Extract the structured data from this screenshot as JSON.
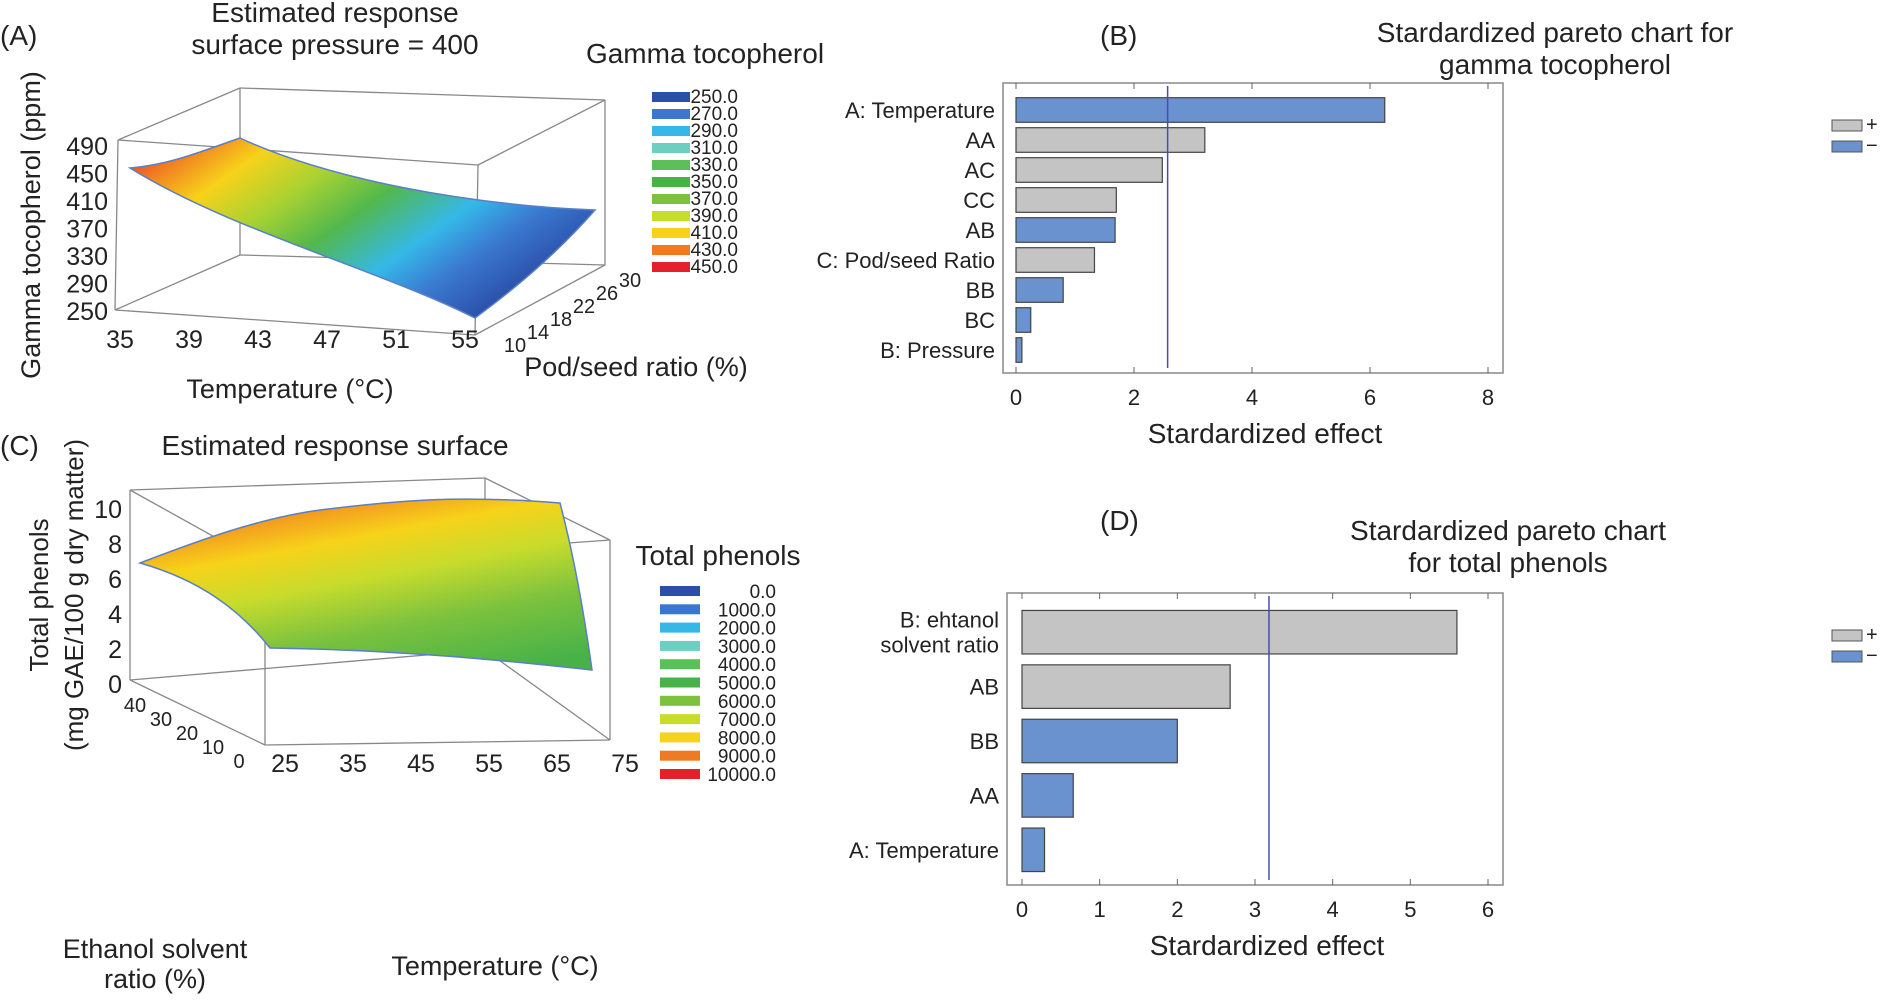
{
  "chart_data": [
    {
      "panel": "(A)",
      "type": "surface3d",
      "title": [
        "Estimated response",
        "surface pressure = 400"
      ],
      "zlabel": "Gamma tocopherol (ppm)",
      "xlabel": "Temperature (°C)",
      "ylabel": "Pod/seed ratio (%)",
      "z_ticks": [
        "490",
        "450",
        "410",
        "370",
        "330",
        "290",
        "250"
      ],
      "x_ticks": [
        "35",
        "39",
        "43",
        "47",
        "51",
        "55"
      ],
      "y_ticks": [
        "10",
        "14",
        "18",
        "22",
        "26",
        "30"
      ],
      "legend_title": "Gamma tocopherol",
      "legend": [
        {
          "label": "250.0",
          "color": "#2b4fa8"
        },
        {
          "label": "270.0",
          "color": "#3a78d0"
        },
        {
          "label": "290.0",
          "color": "#35b8e8"
        },
        {
          "label": "310.0",
          "color": "#6ccfc0"
        },
        {
          "label": "330.0",
          "color": "#5cbf5a"
        },
        {
          "label": "350.0",
          "color": "#48b248"
        },
        {
          "label": "370.0",
          "color": "#7cc23e"
        },
        {
          "label": "390.0",
          "color": "#c8dc2c"
        },
        {
          "label": "410.0",
          "color": "#f7d21a"
        },
        {
          "label": "430.0",
          "color": "#f07a22"
        },
        {
          "label": "450.0",
          "color": "#e4202a"
        }
      ]
    },
    {
      "panel": "(B)",
      "type": "bar",
      "orientation": "horizontal",
      "title": [
        "Stardardized pareto chart for",
        "gamma tocopherol"
      ],
      "xlabel": "Stardardized effect",
      "xlim": [
        0,
        8
      ],
      "x_ticks": [
        "0",
        "2",
        "4",
        "6",
        "8"
      ],
      "reference_line": 2.57,
      "categories": [
        "A: Temperature",
        "AA",
        "AC",
        "CC",
        "AB",
        "C: Pod/seed Ratio",
        "BB",
        "BC",
        "B: Pressure"
      ],
      "values": [
        6.25,
        3.2,
        2.48,
        1.7,
        1.68,
        1.33,
        0.8,
        0.25,
        0.1
      ],
      "signs": [
        "-",
        "+",
        "+",
        "+",
        "-",
        "+",
        "-",
        "-",
        "-"
      ],
      "legend": [
        {
          "label": "+",
          "color": "#c4c4c4"
        },
        {
          "label": "−",
          "color": "#6a92cf"
        }
      ]
    },
    {
      "panel": "(C)",
      "type": "surface3d",
      "title": [
        "Estimated response surface"
      ],
      "zlabel": [
        "Total phenols",
        "(mg GAE/100 g dry matter)"
      ],
      "xlabel": "Temperature (°C)",
      "ylabel": [
        "Ethanol solvent",
        "ratio (%)"
      ],
      "z_ticks": [
        "10",
        "8",
        "6",
        "4",
        "2",
        "0"
      ],
      "x_ticks": [
        "25",
        "35",
        "45",
        "55",
        "65",
        "75"
      ],
      "y_ticks": [
        "40",
        "30",
        "20",
        "10",
        "0"
      ],
      "legend_title": "Total phenols",
      "legend": [
        {
          "label": "0.0",
          "color": "#2b4fa8"
        },
        {
          "label": "1000.0",
          "color": "#3a78d0"
        },
        {
          "label": "2000.0",
          "color": "#35b8e8"
        },
        {
          "label": "3000.0",
          "color": "#6ccfc0"
        },
        {
          "label": "4000.0",
          "color": "#5cbf5a"
        },
        {
          "label": "5000.0",
          "color": "#48b248"
        },
        {
          "label": "6000.0",
          "color": "#7cc23e"
        },
        {
          "label": "7000.0",
          "color": "#c8dc2c"
        },
        {
          "label": "8000.0",
          "color": "#f7d21a"
        },
        {
          "label": "9000.0",
          "color": "#f07a22"
        },
        {
          "label": "10000.0",
          "color": "#e4202a"
        }
      ]
    },
    {
      "panel": "(D)",
      "type": "bar",
      "orientation": "horizontal",
      "title": [
        "Stardardized pareto chart",
        "for total phenols"
      ],
      "xlabel": "Stardardized effect",
      "xlim": [
        0,
        6
      ],
      "x_ticks": [
        "0",
        "1",
        "2",
        "3",
        "4",
        "5",
        "6"
      ],
      "reference_line": 3.18,
      "categories": [
        [
          "B: ehtanol",
          "solvent ratio"
        ],
        "AB",
        "BB",
        "AA",
        "A: Temperature"
      ],
      "values": [
        5.6,
        2.68,
        2.0,
        0.66,
        0.29
      ],
      "signs": [
        "+",
        "+",
        "-",
        "-",
        "-"
      ],
      "legend": [
        {
          "label": "+",
          "color": "#c4c4c4"
        },
        {
          "label": "−",
          "color": "#6a92cf"
        }
      ]
    }
  ]
}
